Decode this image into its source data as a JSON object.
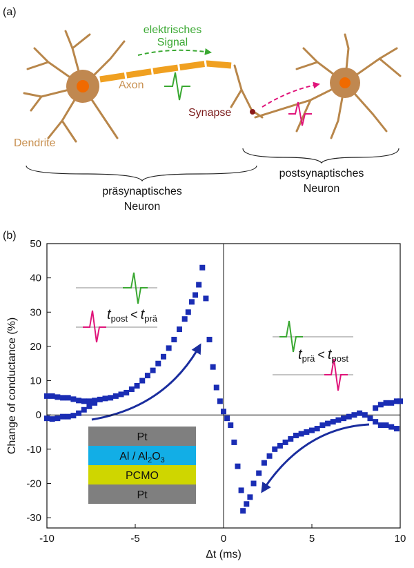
{
  "diagram": {
    "panel_label": "(a)",
    "signal_1": "elektrisches",
    "signal_2": "Signal",
    "axon": "Axon",
    "synapse": "Synapse",
    "dendrite": "Dendrite",
    "pre_1": "präsynaptisches",
    "pre_2": "Neuron",
    "post_1": "postsynaptisches",
    "post_2": "Neuron"
  },
  "chart_data": {
    "type": "scatter",
    "panel_label": "(b)",
    "y_label": "Change of conductance (%)",
    "x_label": "Δt (ms)",
    "color": "#1a2db4",
    "xlim": [
      -10,
      10
    ],
    "xticks": [
      -10,
      -5,
      0,
      5,
      10
    ],
    "ylim": [
      -33,
      50
    ],
    "yticks": [
      -30,
      -20,
      -10,
      0,
      10,
      20,
      30,
      40,
      50
    ],
    "x": [
      -10,
      -9.7,
      -9.4,
      -9.1,
      -8.8,
      -8.5,
      -8.2,
      -7.9,
      -7.6,
      -7.3,
      -7,
      -6.7,
      -6.4,
      -6.1,
      -5.8,
      -5.5,
      -5.2,
      -4.9,
      -4.6,
      -4.3,
      -4,
      -3.7,
      -3.4,
      -3.1,
      -2.8,
      -2.5,
      -2.2,
      -2,
      -1.8,
      -1.6,
      -1.4,
      -1.2,
      -1,
      -0.8,
      -0.6,
      -0.4,
      -0.2,
      0,
      -10,
      -9.7,
      -9.4,
      -9.1,
      -8.8,
      -8.5,
      -8.2,
      -7.9,
      -7.6,
      -7.3,
      0.2,
      0.4,
      0.6,
      0.8,
      1,
      1.1,
      1.3,
      1.5,
      1.7,
      2,
      2.3,
      2.6,
      2.9,
      3.2,
      3.5,
      3.8,
      4.1,
      4.4,
      4.7,
      5,
      5.3,
      5.6,
      5.9,
      6.2,
      6.5,
      6.8,
      7.1,
      7.4,
      7.7,
      8,
      8.3,
      8.6,
      8.9,
      9.2,
      9.5,
      9.8,
      8.6,
      8.9,
      9.2,
      9.5,
      9.8,
      10
    ],
    "values": [
      5.5,
      5.5,
      5.2,
      5,
      5,
      4.6,
      4.2,
      4,
      4,
      4.2,
      4.5,
      4.8,
      5,
      5.5,
      6,
      6.5,
      7.5,
      8.5,
      10,
      11.5,
      13,
      15,
      17,
      19.5,
      22,
      25,
      28,
      30,
      33,
      35,
      38,
      43,
      34,
      22,
      14,
      8,
      4,
      1,
      -1,
      -1.2,
      -1,
      -0.5,
      -0.5,
      -0.2,
      0.5,
      1.5,
      2.5,
      3.5,
      -1,
      -3,
      -8,
      -15,
      -22,
      -28,
      -26,
      -24,
      -20,
      -17,
      -14,
      -12,
      -10,
      -9,
      -8,
      -7,
      -6,
      -5.5,
      -5,
      -4.5,
      -4,
      -3,
      -2.5,
      -2,
      -1.5,
      -1,
      -0.5,
      0,
      0.5,
      0,
      -1,
      -2,
      -3,
      -3,
      -3.5,
      -4,
      2,
      3,
      3.5,
      3.5,
      4,
      4
    ],
    "annotation_left": {
      "t1": "t",
      "s1": "post",
      "op": "<",
      "t2": "t",
      "s2": "prä"
    },
    "annotation_right": {
      "t1": "t",
      "s1": "prä",
      "op": "<",
      "t2": "t",
      "s2": "post"
    },
    "stack": {
      "top": "Pt",
      "oxide_a": "Al / Al",
      "oxide_b": "2",
      "oxide_c": "O",
      "oxide_d": "3",
      "pcmo": "PCMO",
      "bottom": "Pt"
    }
  }
}
